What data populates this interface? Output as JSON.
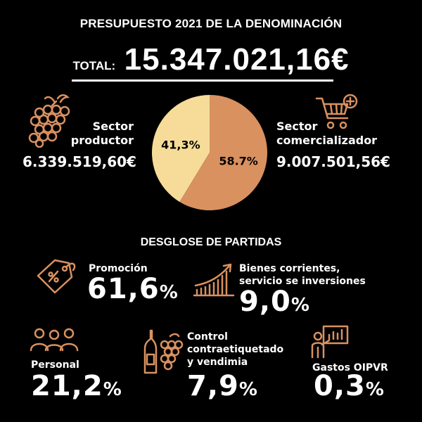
{
  "header": {
    "title": "PRESUPUESTO 2021 DE LA DENOMINACIÓN",
    "total_label": "TOTAL:",
    "total_value": "15.347.021,16€"
  },
  "sectors": {
    "productor": {
      "label_line1": "Sector",
      "label_line2": "productor",
      "amount": "6.339.519,60€",
      "icon": "grapes-icon"
    },
    "comercializador": {
      "label_line1": "Sector",
      "label_line2": "comercializador",
      "amount": "9.007.501,56€",
      "icon": "shopping-cart-icon"
    }
  },
  "chart_data": {
    "type": "pie",
    "slices": [
      {
        "label": "41,3%",
        "value": 41.3,
        "color": "#f6dc98"
      },
      {
        "label": "58.7%",
        "value": 58.7,
        "color": "#d99160"
      }
    ]
  },
  "breakdown": {
    "title": "DESGLOSE DE PARTIDAS",
    "items": [
      {
        "label": "Promoción",
        "value": "61,6",
        "unit": "%",
        "icon": "price-tag-icon"
      },
      {
        "label_line1": "Bienes corrientes,",
        "label_line2": "servicio se inversiones",
        "value": "9,0",
        "unit": "%",
        "icon": "growth-chart-icon"
      },
      {
        "label": "Personal",
        "value": "21,2",
        "unit": "%",
        "icon": "people-group-icon"
      },
      {
        "label_line1": "Control",
        "label_line2": "contraetiquetado",
        "label_line3": "y vendimia",
        "value": "7,9",
        "unit": "%",
        "icon": "wine-bottle-grapes-icon"
      },
      {
        "label": "Gastos OIPVR",
        "value": "0,3",
        "unit": "%",
        "icon": "presentation-icon"
      }
    ]
  },
  "colors": {
    "accent": "#d99160",
    "light": "#f6dc98",
    "background": "#000000"
  }
}
